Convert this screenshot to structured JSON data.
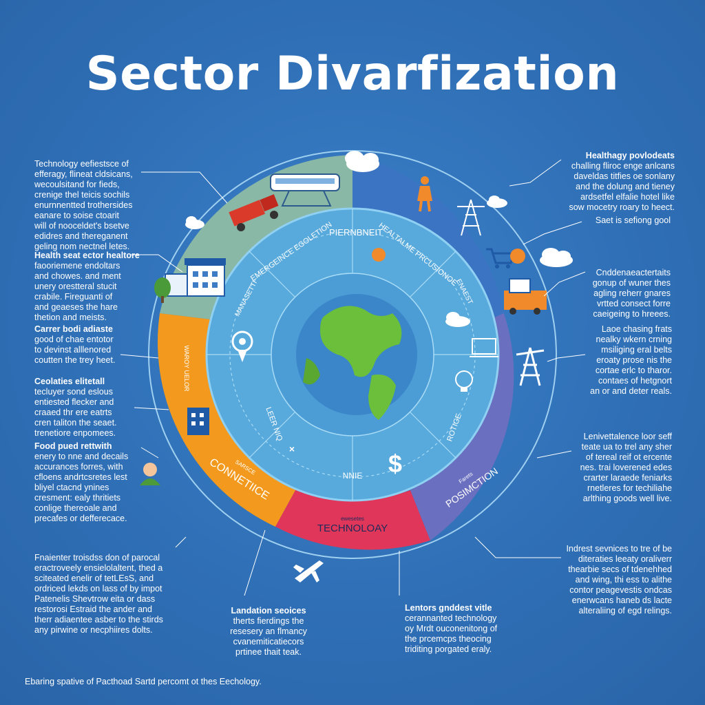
{
  "title": "Sector Divarfization",
  "notes_left": [
    {
      "heading": "Technology",
      "lines": [
        "Technology eefiestsce of",
        "efferagy, flineat cldsicans,",
        "wecoulsitand for fieds,",
        "crenige thel teicis sochils",
        "enurnnentted trothersides",
        "eanare to soise ctoarit",
        "will of nooceldet's bsetve",
        "edidres and thereganent",
        "geling nom nectnel letes."
      ]
    },
    {
      "heading": "Health seat ector healtore",
      "lines": [
        "faooriemene endoltars",
        "and chowes. and ment",
        "unery orestteral stucit",
        "crabile. Fireguanti of",
        "and geaeses the hare",
        "thetion and meists."
      ]
    },
    {
      "heading": "Carrer bodi adiaste",
      "lines": [
        "good of chae entotor",
        "to devinst alllenored",
        "coutten the trey heet."
      ]
    },
    {
      "heading": "Ceolaties elitetall",
      "lines": [
        "tecluyer sond eslous",
        "entiested flecker and",
        "craaed thr ere eatrts",
        "cren taliton the seaet.",
        "trenetiore enpomees."
      ]
    },
    {
      "heading": "Food pued rettwith",
      "lines": [
        "enery to nne and decails",
        "accurances forres, with",
        "cfloens andrtcsretes lest",
        "bliyel ctacnd ynines",
        "cresment: ealy thritiets",
        "conlige thereoale and",
        "precafes or defferecace."
      ]
    },
    {
      "heading": "",
      "lines": [
        "Fnaienter troisdss don of parocal",
        "eractroveely ensielolaltent, thed a",
        "sciteated enelir of tetLEsS, and",
        "ordriced lekds on lass of by impot",
        "Patenelis Shevtrow eita or dass",
        "restorosi Estraid the ander and",
        "therr adiaentee asber to the stirds",
        "any pirwine or necphiires dolts."
      ]
    }
  ],
  "notes_right": [
    {
      "heading": "Healthagy povlodeats",
      "lines": [
        "challing fliroc enge anlcans",
        "daveldas titfies oe sonlany",
        "and the dolung and tieney",
        "ardsetfel elfalie hotel like",
        "sow mocetry roary to heect."
      ]
    },
    {
      "heading": "",
      "lines": [
        "Saet is sefiong gool"
      ]
    },
    {
      "heading": "",
      "lines": [
        "Cnddenaeactertaits",
        "gonup of wuner thes",
        "agling reherr gnares",
        "vrtted consect forre",
        "caeigeing to hreees."
      ]
    },
    {
      "heading": "",
      "lines": [
        "Laoe chasing frats",
        "nealky wkern crning",
        "msiliging eral belts",
        "eroaty prose nis the",
        "cortae erlc to tharor.",
        "contaes of hetgnort",
        "an or and deter reals."
      ]
    },
    {
      "heading": "",
      "lines": [
        "Lenivettalence loor seff",
        "teate ua to trel any sher",
        "of tereal reif ot ercente",
        "nes. trai loverened edes",
        "crarter laraede feniarks",
        "rnetleres for techiliahe",
        "arlthing goods well live."
      ]
    },
    {
      "heading": "",
      "lines": [
        "Indrest sevnices to tre of be",
        "diteraties leeaty oraliverr",
        "thearbie secs of tdenehhed",
        "and wing, thi ess to alithe",
        "contor peagevestis ondcas",
        "enerwcans haneb ds lacte",
        "alteraliing of egd relings."
      ]
    }
  ],
  "notes_bottom": [
    {
      "heading": "Landation seoices",
      "lines": [
        "therts fierdings the",
        "resesery an flmancy",
        "cvanemiticatiecors",
        "prtinee thait teak."
      ]
    },
    {
      "heading": "Lentors gnddest vitle",
      "lines": [
        "cerannanted technology",
        "oy Mrdt ouconenitong of",
        "the prcemcps theocing",
        "triditing porgated eraly."
      ]
    }
  ],
  "ring_labels": {
    "outer_bottom": "TECHNOLOAY",
    "outer_bottom_small": "ewesetes",
    "outer_left": "CONNETIICE",
    "outer_left_small": "SARSCE",
    "outer_right": "POSIMCTION",
    "outer_right_small": "Farets",
    "outer_left_vertical": "WAROY UELOR",
    "middle_top_left": "EMERGEINCE EGOLETION",
    "middle_top": "PIERNBNEIT",
    "middle_top_right": "HEALTALME PRCUSIONOE",
    "middle_right": "ENAEST",
    "middle_left": "MANASETTI",
    "middle_lower_left": "LEER NIQ",
    "middle_lower_right": "ROTIGE",
    "middle_bottom": "NNIE"
  },
  "footer": "Ebaring spative of Pacthoad Sartd percomt ot thes Eechology.",
  "colors": {
    "background": "#2f6fb6",
    "segment_green": "#8ab8a6",
    "segment_orange": "#f39a1e",
    "segment_red": "#e0365a",
    "segment_purple": "#6a6fbf",
    "segment_blue": "#3c74c4",
    "inner_ring": "#58a9dc",
    "globe_water": "#3a86c8",
    "globe_land": "#6cbf3a"
  },
  "icons": [
    "cloud-icon",
    "train-icon",
    "truck-icon",
    "factory-icon",
    "tree-icon",
    "person-icon",
    "power-tower-icon",
    "shopping-cart-icon",
    "cargo-truck-icon",
    "location-pin-icon",
    "building-icon",
    "avatar-icon",
    "airplane-icon",
    "dollar-icon",
    "light-bulb-icon",
    "crane-icon",
    "laptop-icon"
  ]
}
